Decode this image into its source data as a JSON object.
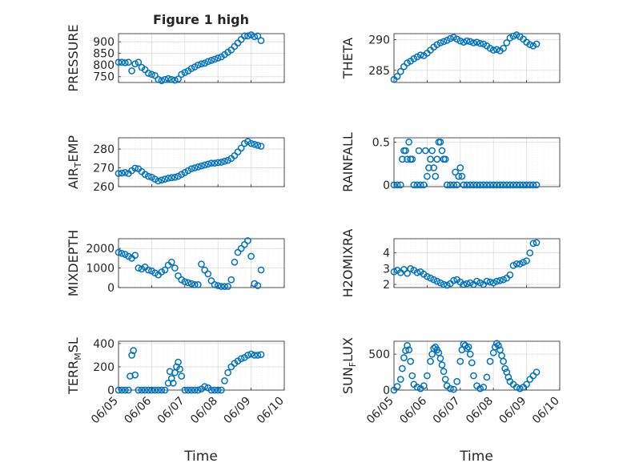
{
  "figure": {
    "title": "Figure 1 high",
    "xlabel": "Time",
    "colors": {
      "marker": "#0072bd",
      "axes": "#262626",
      "grid": "#dcdcdc"
    },
    "xticks": [
      "06/05",
      "06/06",
      "06/07",
      "06/08",
      "06/09",
      "06/10"
    ]
  },
  "chart_data": [
    {
      "type": "scatter",
      "ylabel": "PRESSURE",
      "title": "Figure 1 high",
      "xlim": [
        0,
        5
      ],
      "ylim": [
        725,
        935
      ],
      "yticks": [
        750,
        800,
        850,
        900
      ],
      "grid": true,
      "x": [
        0.0,
        0.1,
        0.2,
        0.3,
        0.4,
        0.5,
        0.6,
        0.7,
        0.8,
        0.9,
        1.0,
        1.1,
        1.2,
        1.3,
        1.4,
        1.5,
        1.6,
        1.7,
        1.8,
        1.9,
        2.0,
        2.1,
        2.2,
        2.3,
        2.4,
        2.5,
        2.6,
        2.7,
        2.8,
        2.9,
        3.0,
        3.1,
        3.2,
        3.3,
        3.4,
        3.5,
        3.6,
        3.7,
        3.8,
        3.9,
        4.0,
        4.1,
        4.2,
        4.3
      ],
      "y": [
        812,
        812,
        810,
        812,
        775,
        805,
        812,
        790,
        780,
        765,
        760,
        755,
        738,
        733,
        738,
        742,
        738,
        735,
        740,
        760,
        768,
        775,
        785,
        792,
        800,
        805,
        808,
        815,
        820,
        825,
        830,
        835,
        845,
        855,
        865,
        880,
        895,
        910,
        925,
        925,
        930,
        922,
        925,
        905
      ]
    },
    {
      "type": "scatter",
      "ylabel": "THETA",
      "xlim": [
        0,
        5
      ],
      "ylim": [
        283,
        291
      ],
      "yticks": [
        285,
        290
      ],
      "grid": true,
      "x": [
        0.0,
        0.1,
        0.2,
        0.3,
        0.4,
        0.5,
        0.6,
        0.7,
        0.8,
        0.9,
        1.0,
        1.1,
        1.2,
        1.3,
        1.4,
        1.5,
        1.6,
        1.7,
        1.8,
        1.9,
        2.0,
        2.1,
        2.2,
        2.3,
        2.4,
        2.5,
        2.6,
        2.7,
        2.8,
        2.9,
        3.0,
        3.1,
        3.2,
        3.3,
        3.4,
        3.5,
        3.6,
        3.7,
        3.8,
        3.9,
        4.0,
        4.1,
        4.2,
        4.3
      ],
      "y": [
        283.5,
        284.0,
        284.8,
        285.6,
        286.2,
        286.5,
        286.9,
        287.2,
        287.5,
        287.4,
        287.8,
        288.3,
        288.8,
        289.2,
        289.5,
        289.7,
        289.9,
        290.2,
        290.4,
        290.1,
        289.8,
        289.6,
        289.8,
        289.7,
        289.5,
        289.6,
        289.4,
        289.3,
        289.0,
        288.6,
        288.3,
        288.4,
        288.2,
        288.6,
        289.5,
        290.3,
        290.6,
        290.8,
        290.5,
        290.1,
        289.6,
        289.2,
        289.0,
        289.3
      ]
    },
    {
      "type": "scatter",
      "ylabel": "AIR_TEMP",
      "xlim": [
        0,
        5
      ],
      "ylim": [
        260,
        286
      ],
      "yticks": [
        260,
        270,
        280
      ],
      "grid": true,
      "x": [
        0.0,
        0.1,
        0.2,
        0.3,
        0.4,
        0.5,
        0.6,
        0.7,
        0.8,
        0.9,
        1.0,
        1.1,
        1.2,
        1.3,
        1.4,
        1.5,
        1.6,
        1.7,
        1.8,
        1.9,
        2.0,
        2.1,
        2.2,
        2.3,
        2.4,
        2.5,
        2.6,
        2.7,
        2.8,
        2.9,
        3.0,
        3.1,
        3.2,
        3.3,
        3.4,
        3.5,
        3.6,
        3.7,
        3.8,
        3.9,
        4.0,
        4.1,
        4.2,
        4.3
      ],
      "y": [
        267.0,
        267.2,
        267.5,
        267.0,
        268.5,
        269.8,
        269.5,
        268.0,
        266.5,
        265.5,
        265.0,
        264.0,
        263.0,
        263.5,
        264.0,
        264.5,
        264.8,
        265.0,
        265.5,
        266.5,
        267.5,
        268.5,
        269.5,
        270.0,
        270.5,
        271.0,
        271.5,
        272.0,
        272.5,
        272.5,
        272.8,
        273.0,
        273.5,
        274.0,
        275.0,
        276.5,
        278.5,
        280.5,
        283.0,
        284.0,
        283.0,
        282.5,
        282.0,
        281.5
      ]
    },
    {
      "type": "scatter",
      "ylabel": "RAINFALL",
      "xlim": [
        0,
        5
      ],
      "ylim": [
        -0.02,
        0.55
      ],
      "yticks": [
        0,
        0.5
      ],
      "grid": true,
      "x": [
        0.0,
        0.1,
        0.2,
        0.25,
        0.3,
        0.35,
        0.4,
        0.45,
        0.5,
        0.55,
        0.6,
        0.7,
        0.8,
        0.9,
        0.95,
        1.0,
        1.05,
        1.1,
        1.15,
        1.2,
        1.25,
        1.3,
        1.35,
        1.4,
        1.45,
        1.5,
        1.55,
        1.6,
        1.7,
        1.8,
        1.9,
        1.95,
        2.0,
        2.1,
        2.2,
        2.3,
        2.4,
        2.5,
        2.6,
        2.7,
        2.8,
        2.9,
        3.0,
        3.1,
        3.2,
        3.3,
        3.4,
        3.5,
        3.6,
        3.7,
        3.8,
        3.9,
        4.0,
        4.1,
        4.2,
        4.3,
        0.75,
        1.85,
        2.05
      ],
      "y": [
        0,
        0,
        0,
        0.3,
        0.4,
        0.4,
        0.3,
        0.5,
        0.3,
        0.3,
        0,
        0,
        0,
        0,
        0.4,
        0.1,
        0.2,
        0.3,
        0.4,
        0.2,
        0.1,
        0.3,
        0.5,
        0.5,
        0.4,
        0.3,
        0.3,
        0,
        0,
        0,
        0,
        0.1,
        0.2,
        0,
        0,
        0,
        0,
        0,
        0,
        0,
        0,
        0,
        0,
        0,
        0,
        0,
        0,
        0,
        0,
        0,
        0,
        0,
        0,
        0,
        0,
        0,
        0.4,
        0.15,
        0.1
      ]
    },
    {
      "type": "scatter",
      "ylabel": "MIXDEPTH",
      "xlim": [
        0,
        5
      ],
      "ylim": [
        0,
        2500
      ],
      "yticks": [
        0,
        1000,
        2000
      ],
      "grid": true,
      "x": [
        0.0,
        0.1,
        0.2,
        0.3,
        0.4,
        0.5,
        0.6,
        0.7,
        0.8,
        0.9,
        1.0,
        1.1,
        1.2,
        1.3,
        1.4,
        1.5,
        1.6,
        1.7,
        1.8,
        1.9,
        2.0,
        2.1,
        2.2,
        2.3,
        2.4,
        2.5,
        2.6,
        2.7,
        2.8,
        2.9,
        3.0,
        3.1,
        3.2,
        3.3,
        3.4,
        3.5,
        3.6,
        3.7,
        3.8,
        3.9,
        4.0,
        4.1,
        4.2,
        4.3
      ],
      "y": [
        1800,
        1750,
        1700,
        1600,
        1500,
        1650,
        1000,
        950,
        1050,
        900,
        850,
        750,
        650,
        800,
        900,
        1150,
        1300,
        1000,
        600,
        400,
        300,
        250,
        200,
        150,
        150,
        1200,
        900,
        700,
        350,
        150,
        100,
        60,
        60,
        60,
        400,
        1300,
        1800,
        2000,
        2200,
        2400,
        1600,
        200,
        100,
        900
      ]
    },
    {
      "type": "scatter",
      "ylabel": "H2OMIXRA",
      "xlim": [
        0,
        5
      ],
      "ylim": [
        1.8,
        4.9
      ],
      "yticks": [
        2,
        3,
        4
      ],
      "grid": true,
      "x": [
        0.0,
        0.1,
        0.2,
        0.3,
        0.4,
        0.5,
        0.6,
        0.7,
        0.8,
        0.9,
        1.0,
        1.1,
        1.2,
        1.3,
        1.4,
        1.5,
        1.6,
        1.7,
        1.8,
        1.9,
        2.0,
        2.1,
        2.2,
        2.3,
        2.4,
        2.5,
        2.6,
        2.7,
        2.8,
        2.9,
        3.0,
        3.1,
        3.2,
        3.3,
        3.4,
        3.5,
        3.6,
        3.7,
        3.8,
        3.9,
        4.0,
        4.1,
        4.2,
        4.3
      ],
      "y": [
        2.8,
        2.9,
        2.75,
        2.95,
        2.7,
        3.0,
        2.9,
        2.75,
        2.8,
        2.65,
        2.5,
        2.4,
        2.3,
        2.2,
        2.1,
        2.0,
        1.95,
        2.05,
        2.25,
        2.3,
        2.15,
        2.0,
        2.05,
        2.1,
        2.0,
        2.2,
        2.1,
        2.0,
        2.2,
        2.15,
        2.1,
        2.2,
        2.25,
        2.3,
        2.4,
        2.6,
        3.2,
        3.3,
        3.3,
        3.4,
        3.5,
        4.0,
        4.6,
        4.65
      ]
    },
    {
      "type": "scatter",
      "ylabel": "TERR_MSL",
      "xlim": [
        0,
        5
      ],
      "ylim": [
        0,
        420
      ],
      "yticks": [
        0,
        200,
        400
      ],
      "grid": true,
      "x": [
        0.0,
        0.1,
        0.2,
        0.3,
        0.35,
        0.4,
        0.45,
        0.5,
        0.6,
        0.7,
        0.8,
        0.9,
        1.0,
        1.1,
        1.2,
        1.3,
        1.4,
        1.5,
        1.55,
        1.6,
        1.65,
        1.7,
        1.75,
        1.8,
        1.85,
        1.9,
        2.0,
        2.1,
        2.2,
        2.3,
        2.4,
        2.5,
        2.6,
        2.7,
        2.8,
        2.9,
        3.0,
        3.1,
        3.2,
        3.3,
        3.4,
        3.5,
        3.6,
        3.7,
        3.8,
        3.9,
        4.0,
        4.1,
        4.2,
        4.3
      ],
      "y": [
        0,
        0,
        0,
        0,
        120,
        300,
        340,
        130,
        0,
        0,
        0,
        0,
        0,
        0,
        0,
        0,
        0,
        60,
        160,
        100,
        60,
        150,
        200,
        240,
        180,
        120,
        0,
        0,
        0,
        0,
        0,
        10,
        30,
        20,
        0,
        0,
        0,
        0,
        80,
        150,
        200,
        230,
        250,
        270,
        280,
        300,
        310,
        300,
        300,
        305
      ]
    },
    {
      "type": "scatter",
      "ylabel": "SUN_FLUX",
      "xlim": [
        0,
        5
      ],
      "ylim": [
        0,
        680
      ],
      "yticks": [
        0,
        500
      ],
      "grid": true,
      "x": [
        0.0,
        0.1,
        0.2,
        0.25,
        0.3,
        0.35,
        0.4,
        0.45,
        0.5,
        0.55,
        0.6,
        0.7,
        0.8,
        0.9,
        1.0,
        1.1,
        1.15,
        1.2,
        1.25,
        1.3,
        1.35,
        1.4,
        1.45,
        1.5,
        1.55,
        1.6,
        1.7,
        1.8,
        1.9,
        2.0,
        2.05,
        2.1,
        2.15,
        2.2,
        2.25,
        2.3,
        2.35,
        2.4,
        2.5,
        2.6,
        2.7,
        2.8,
        2.9,
        3.0,
        3.05,
        3.1,
        3.15,
        3.2,
        3.25,
        3.3,
        3.35,
        3.4,
        3.45,
        3.5,
        3.6,
        3.7,
        3.8,
        3.9,
        4.0,
        4.1,
        4.2,
        4.3
      ],
      "y": [
        0,
        50,
        150,
        300,
        450,
        550,
        620,
        560,
        400,
        200,
        80,
        40,
        20,
        60,
        200,
        400,
        500,
        580,
        600,
        560,
        520,
        440,
        350,
        260,
        150,
        60,
        20,
        10,
        120,
        400,
        560,
        640,
        620,
        580,
        600,
        500,
        380,
        200,
        60,
        20,
        40,
        180,
        400,
        520,
        600,
        650,
        620,
        560,
        480,
        400,
        300,
        250,
        180,
        120,
        80,
        40,
        20,
        40,
        80,
        150,
        200,
        250
      ]
    }
  ]
}
